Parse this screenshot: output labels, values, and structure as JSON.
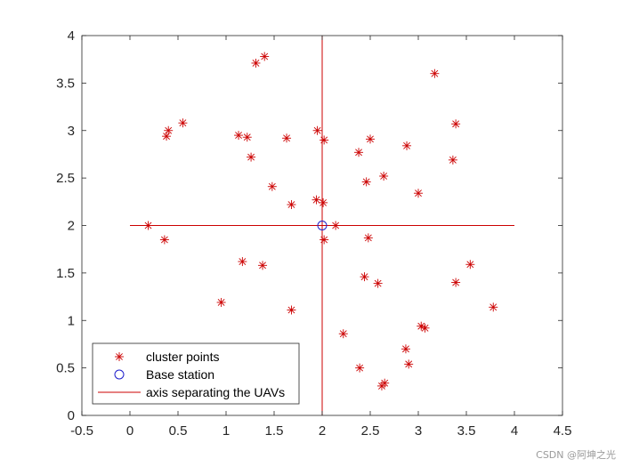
{
  "chart_data": {
    "type": "scatter",
    "xlim": [
      -0.5,
      4.5
    ],
    "ylim": [
      0,
      4
    ],
    "xticks": [
      "-0.5",
      "0",
      "0.5",
      "1",
      "1.5",
      "2",
      "2.5",
      "3",
      "3.5",
      "4",
      "4.5"
    ],
    "yticks": [
      "0",
      "0.5",
      "1",
      "1.5",
      "2",
      "2.5",
      "3",
      "3.5",
      "4"
    ],
    "grid": false,
    "legend_position": "bottom-left",
    "series": [
      {
        "name": "cluster points",
        "marker": "asterisk",
        "color": "#cc0000",
        "points": [
          [
            1.31,
            3.71
          ],
          [
            1.4,
            3.78
          ],
          [
            3.17,
            3.6
          ],
          [
            0.38,
            2.94
          ],
          [
            0.4,
            3.0
          ],
          [
            0.55,
            3.08
          ],
          [
            1.13,
            2.95
          ],
          [
            1.22,
            2.93
          ],
          [
            1.63,
            2.92
          ],
          [
            1.95,
            3.0
          ],
          [
            2.02,
            2.9
          ],
          [
            2.5,
            2.91
          ],
          [
            2.88,
            2.84
          ],
          [
            3.39,
            3.07
          ],
          [
            3.36,
            2.69
          ],
          [
            1.26,
            2.72
          ],
          [
            2.38,
            2.77
          ],
          [
            2.46,
            2.46
          ],
          [
            2.64,
            2.52
          ],
          [
            3.0,
            2.34
          ],
          [
            1.48,
            2.41
          ],
          [
            1.68,
            2.22
          ],
          [
            1.94,
            2.27
          ],
          [
            2.01,
            2.24
          ],
          [
            0.19,
            2.0
          ],
          [
            0.36,
            1.85
          ],
          [
            2.14,
            2.0
          ],
          [
            2.02,
            1.85
          ],
          [
            2.48,
            1.87
          ],
          [
            3.54,
            1.59
          ],
          [
            1.17,
            1.62
          ],
          [
            1.38,
            1.58
          ],
          [
            2.44,
            1.46
          ],
          [
            2.58,
            1.39
          ],
          [
            3.39,
            1.4
          ],
          [
            0.95,
            1.19
          ],
          [
            1.68,
            1.11
          ],
          [
            3.78,
            1.14
          ],
          [
            2.22,
            0.86
          ],
          [
            3.03,
            0.94
          ],
          [
            3.07,
            0.92
          ],
          [
            2.87,
            0.7
          ],
          [
            2.39,
            0.5
          ],
          [
            2.9,
            0.54
          ],
          [
            2.62,
            0.31
          ],
          [
            2.65,
            0.34
          ]
        ]
      },
      {
        "name": "Base station",
        "marker": "circle",
        "color": "#1f1fcc",
        "points": [
          [
            2,
            2
          ]
        ]
      },
      {
        "name": "axis separating the UAVs",
        "marker": "line",
        "color": "#cc0000",
        "lines": [
          [
            [
              0,
              2
            ],
            [
              4,
              2
            ]
          ],
          [
            [
              2,
              0
            ],
            [
              2,
              4
            ]
          ]
        ]
      }
    ]
  },
  "watermark": "CSDN @阿坤之光"
}
